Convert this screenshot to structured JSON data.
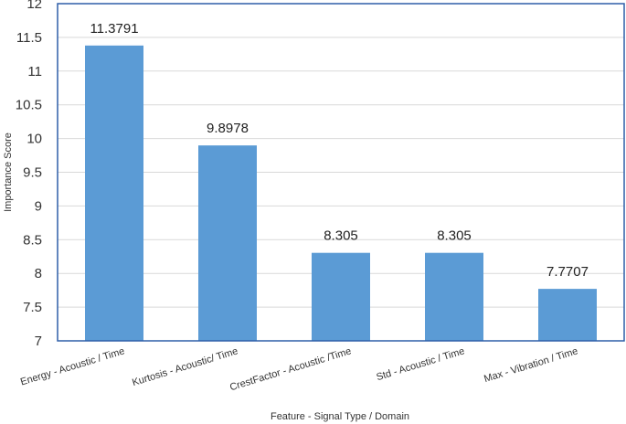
{
  "chart_data": {
    "type": "bar",
    "categories": [
      "Energy  - Acoustic / Time",
      "Kurtosis - Acoustic/ Time",
      "CrestFactor - Acoustic /Time",
      "Std - Acoustic / Time",
      "Max - Vibration / Time"
    ],
    "values": [
      11.3791,
      9.8978,
      8.305,
      8.305,
      7.7707
    ],
    "value_labels": [
      "11.3791",
      "9.8978",
      "8.305",
      "8.305",
      "7.7707"
    ],
    "xlabel": "Feature - Signal Type / Domain",
    "ylabel": "Importance Score",
    "ylim": [
      7,
      12
    ],
    "yticks": [
      7,
      7.5,
      8,
      8.5,
      9,
      9.5,
      10,
      10.5,
      11,
      11.5,
      12
    ],
    "grid": true,
    "bar_color": "#5b9bd5",
    "border_color": "#2e5fa8",
    "grid_color": "#d9d9d9"
  }
}
